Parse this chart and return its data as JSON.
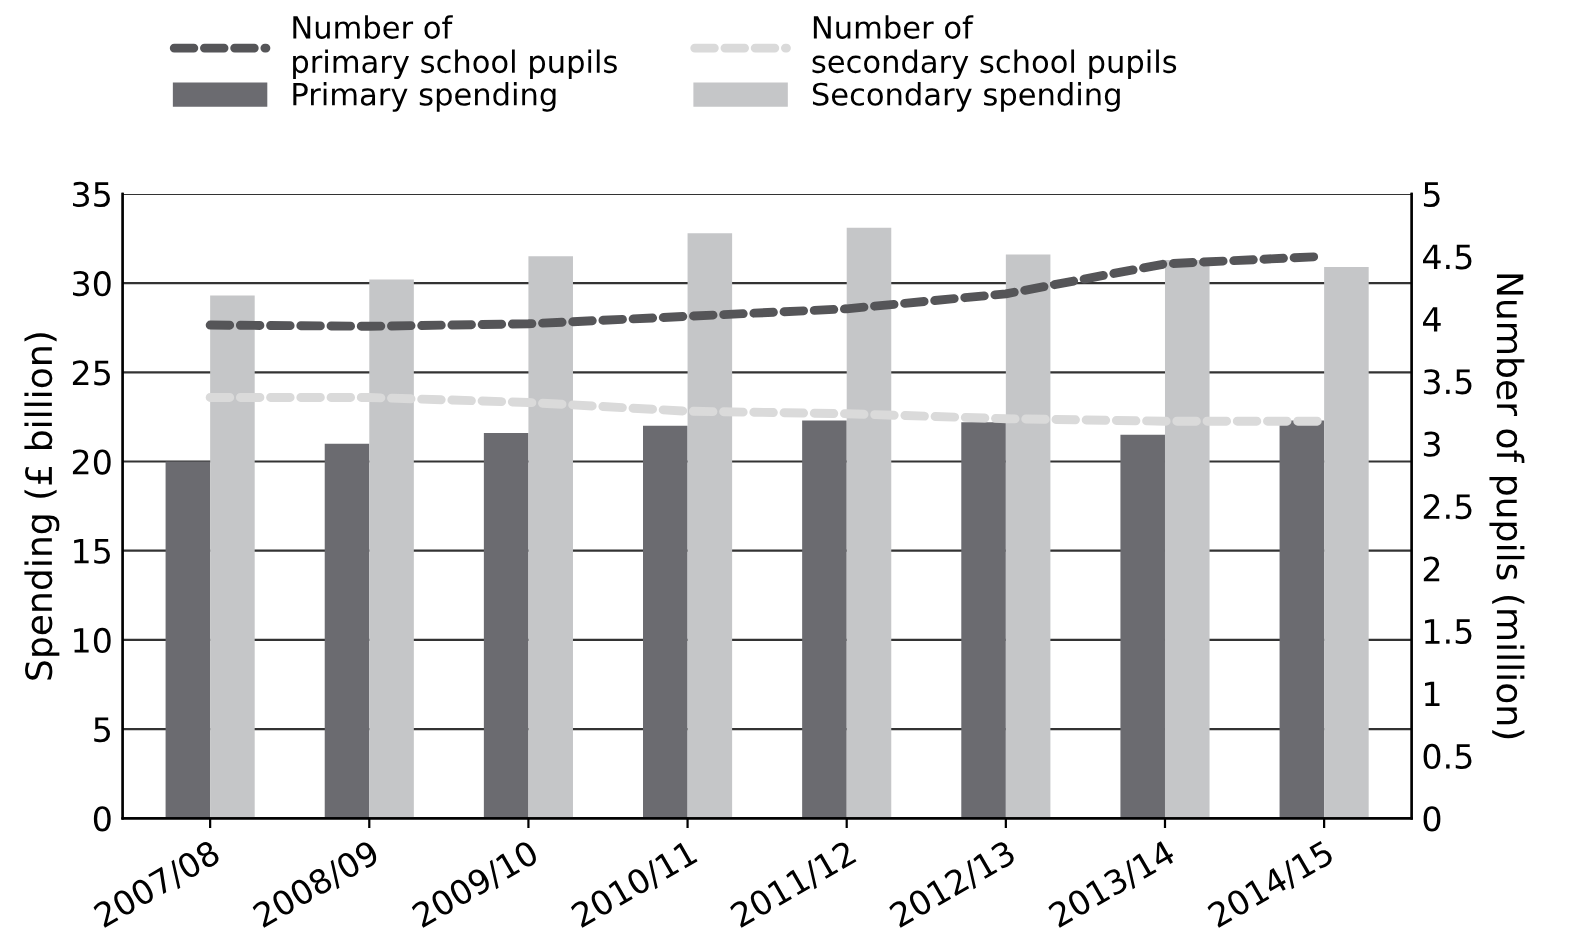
{
  "chart_data": {
    "type": "bar",
    "categories": [
      "2007/08",
      "2008/09",
      "2009/10",
      "2010/11",
      "2011/12",
      "2012/13",
      "2013/14",
      "2014/15"
    ],
    "series": [
      {
        "name": "Primary spending",
        "color": "#6b6b70",
        "values": [
          20,
          21,
          21.6,
          22,
          22.3,
          22.2,
          21.5,
          22.3
        ]
      },
      {
        "name": "Secondary spending",
        "color": "#c5c6c8",
        "values": [
          29.3,
          30.2,
          31.5,
          32.8,
          33.1,
          31.6,
          31.3,
          30.9
        ]
      },
      {
        "name": "Number of\nprimary school pupils",
        "type": "line",
        "axis": "y2",
        "color": "#555558",
        "line_style": "dashed",
        "values": [
          3.95,
          3.94,
          3.96,
          4.02,
          4.08,
          4.2,
          4.44,
          4.5
        ]
      },
      {
        "name": "Number of\nsecondary school pupils",
        "type": "line",
        "axis": "y2",
        "color": "#dadada",
        "line_style": "dashed",
        "values": [
          3.37,
          3.37,
          3.33,
          3.26,
          3.24,
          3.2,
          3.18,
          3.18
        ]
      }
    ],
    "ylabel": "Spending (£ billion)",
    "y2label": "Number of pupils (million)",
    "ylim": [
      0,
      35
    ],
    "yticks": [
      0,
      5,
      10,
      15,
      20,
      25,
      30,
      35
    ],
    "y2lim": [
      0,
      5
    ],
    "y2ticks": [
      0,
      0.5,
      1,
      1.5,
      2,
      2.5,
      3,
      3.5,
      4,
      4.5,
      5
    ],
    "grid": "y",
    "legend": "top"
  }
}
